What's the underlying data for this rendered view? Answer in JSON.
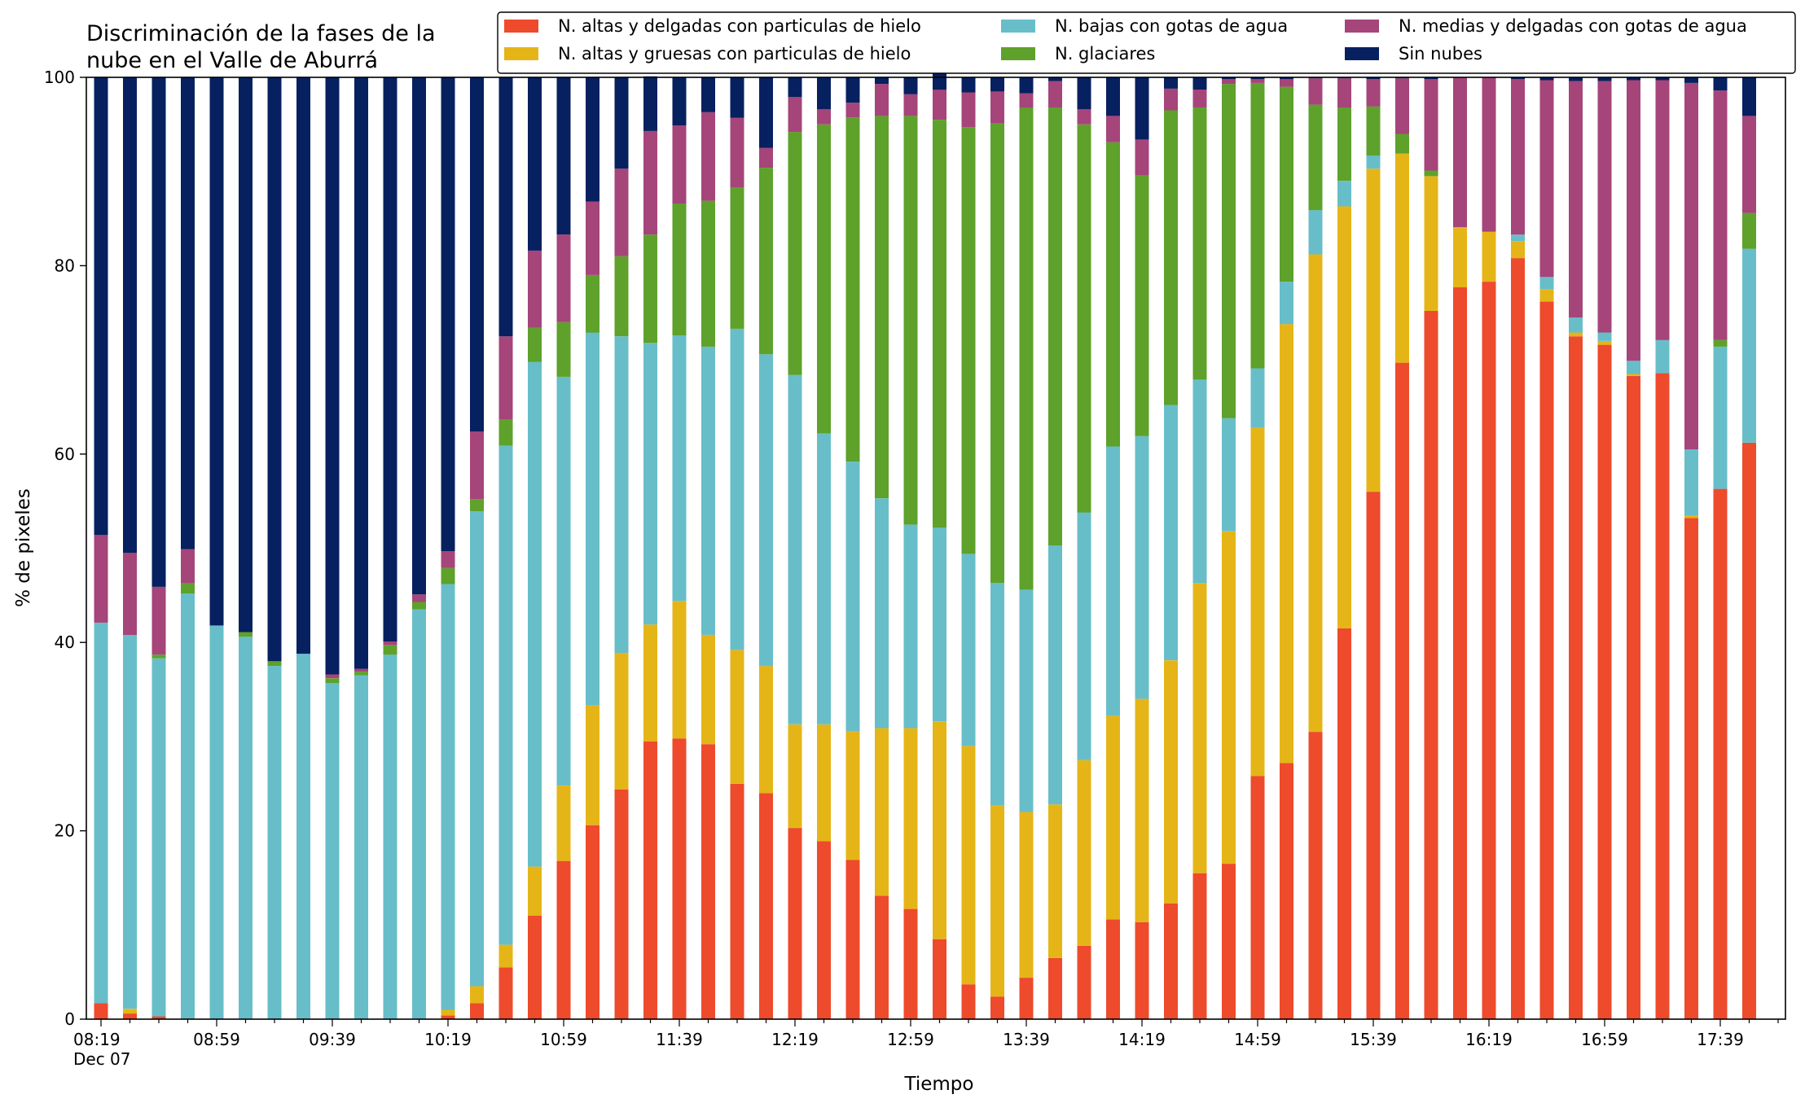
{
  "chart_data": {
    "type": "bar",
    "stacked": true,
    "title": "Discriminación de la fases de la\nnube en el Valle de Aburrá",
    "xlabel": "Tiempo",
    "ylabel": "% de pixeles",
    "ylim": [
      0,
      100
    ],
    "yticks": [
      0,
      20,
      40,
      60,
      80,
      100
    ],
    "xtick_labels": [
      "08:19",
      "08:59",
      "09:39",
      "10:19",
      "10:59",
      "11:39",
      "12:19",
      "12:59",
      "13:39",
      "14:19",
      "14:59",
      "15:39",
      "16:19",
      "16:59",
      "17:39"
    ],
    "xtick_sublabel": "Dec 07",
    "grid": false,
    "legend": "top",
    "categories": [
      "08:19",
      "08:29",
      "08:39",
      "08:49",
      "08:59",
      "09:09",
      "09:19",
      "09:29",
      "09:39",
      "09:49",
      "09:59",
      "10:09",
      "10:19",
      "10:29",
      "10:39",
      "10:49",
      "10:59",
      "11:09",
      "11:19",
      "11:29",
      "11:39",
      "11:49",
      "11:59",
      "12:09",
      "12:19",
      "12:29",
      "12:39",
      "12:49",
      "12:59",
      "13:09",
      "13:19",
      "13:29",
      "13:39",
      "13:49",
      "13:59",
      "14:09",
      "14:19",
      "14:29",
      "14:39",
      "14:49",
      "14:59",
      "15:09",
      "15:19",
      "15:29",
      "15:39",
      "15:49",
      "15:59",
      "16:09",
      "16:19",
      "16:29",
      "16:39",
      "16:49",
      "16:59",
      "17:09",
      "17:19",
      "17:29",
      "17:39",
      "17:49"
    ],
    "series": [
      {
        "name": "N. altas y delgadas con particulas de hielo",
        "color": "#ee4a2c",
        "values": [
          1.7,
          0.6,
          0.3,
          0,
          0,
          0,
          0,
          0,
          0,
          0,
          0,
          0,
          0.4,
          1.7,
          5.5,
          11,
          16.8,
          20.6,
          24.4,
          29.5,
          29.8,
          29.2,
          25,
          24,
          20.3,
          18.9,
          16.9,
          13.1,
          11.7,
          8.5,
          3.7,
          2.4,
          4.4,
          6.5,
          7.8,
          10.6,
          10.3,
          12.3,
          15.5,
          16.5,
          25.8,
          27.2,
          30.5,
          41.5,
          56,
          69.7,
          75.2,
          77.7,
          78.3,
          80.8,
          76.2,
          72.5,
          71.6,
          68.3,
          68.6,
          53.2,
          56.3,
          61.2
        ]
      },
      {
        "name": "N. altas y gruesas con particulas de hielo",
        "color": "#e5b517",
        "values": [
          0,
          0.5,
          0,
          0,
          0,
          0,
          0,
          0,
          0,
          0,
          0,
          0,
          0.6,
          1.8,
          2.4,
          5.2,
          8,
          12.7,
          14.5,
          12.4,
          14.6,
          11.6,
          14.2,
          13.5,
          11,
          12.4,
          13.7,
          17.8,
          19.2,
          23.1,
          25.3,
          20.3,
          17.6,
          16.3,
          19.7,
          21.6,
          23.7,
          25.8,
          30.8,
          35.3,
          37,
          46.6,
          50.7,
          44.8,
          34.3,
          22.2,
          14.3,
          6.4,
          5.3,
          1.8,
          1.3,
          0.4,
          0.4,
          0.2,
          0,
          0.3,
          0,
          0
        ]
      },
      {
        "name": "N. bajas con gotas de agua",
        "color": "#67bec9",
        "values": [
          40.4,
          39.7,
          38,
          45.2,
          41.8,
          40.6,
          37.5,
          38.8,
          35.7,
          36.5,
          38.7,
          43.5,
          45.2,
          50.4,
          53,
          53.6,
          43.4,
          39.6,
          33.6,
          29.9,
          28.2,
          30.6,
          34.1,
          33.1,
          37.1,
          30.9,
          28.6,
          24.4,
          21.6,
          20.6,
          20.4,
          23.6,
          23.6,
          27.5,
          26.3,
          28.6,
          27.9,
          27.1,
          21.6,
          12,
          6.3,
          4.5,
          4.7,
          2.7,
          1.4,
          0,
          0,
          0,
          0,
          0.7,
          1.3,
          1.6,
          0.9,
          1.4,
          3.5,
          7,
          15.1,
          20.6
        ]
      },
      {
        "name": "N. glaciares",
        "color": "#5ea12b",
        "values": [
          0,
          0,
          0.4,
          1.1,
          0,
          0.5,
          0.5,
          0,
          0.5,
          0.4,
          1,
          0.8,
          1.7,
          1.3,
          2.8,
          3.6,
          5.8,
          6.1,
          8.5,
          11.5,
          14,
          15.5,
          15,
          19.8,
          25.8,
          32.8,
          36.5,
          40.6,
          43.4,
          43.3,
          45.3,
          48.8,
          51.2,
          46.5,
          41.2,
          32.3,
          27.7,
          31.3,
          28.9,
          35.5,
          30.3,
          20.7,
          11.2,
          7.8,
          5.2,
          2.1,
          0.6,
          0,
          0,
          0,
          0,
          0,
          0,
          0,
          0,
          0,
          0.7,
          3.8
        ]
      },
      {
        "name": "N. medias y delgadas con gotas de agua",
        "color": "#a5457a",
        "values": [
          9.3,
          8.7,
          7.2,
          3.6,
          0,
          0,
          0,
          0,
          0.4,
          0.3,
          0.4,
          0.8,
          1.8,
          7.2,
          8.8,
          8.2,
          9.3,
          7.8,
          9.3,
          11,
          8.3,
          9.4,
          7.4,
          2.1,
          3.7,
          1.6,
          1.6,
          3.4,
          2.3,
          3.2,
          3.7,
          3.4,
          1.5,
          2.8,
          1.6,
          2.8,
          3.8,
          2.3,
          1.9,
          0.5,
          0.4,
          0.8,
          2.8,
          3.1,
          2.9,
          5.9,
          9.7,
          15.9,
          16.4,
          16.5,
          20.9,
          25.1,
          26.7,
          29.8,
          27.6,
          38.9,
          26.5,
          10.3
        ]
      },
      {
        "name": "Sin nubes",
        "color": "#07205f",
        "values": [
          48.6,
          50.5,
          54.1,
          50.1,
          58.2,
          58.9,
          62,
          61.2,
          63.4,
          62.8,
          59.9,
          54.9,
          50.3,
          37.6,
          27.5,
          18.4,
          16.7,
          13.2,
          9.7,
          5.8,
          5.1,
          3.7,
          4.3,
          7.5,
          2.1,
          3.4,
          2.7,
          0.7,
          1.8,
          1.7,
          1.6,
          1.5,
          1.7,
          0.4,
          3.4,
          4.1,
          6.6,
          1.2,
          1.3,
          0.2,
          0.2,
          0.2,
          0.1,
          0.1,
          0.2,
          0.1,
          0.2,
          0,
          0,
          0.2,
          0.3,
          0.4,
          0.4,
          0.3,
          0.3,
          0.6,
          1.4,
          4.1
        ]
      }
    ]
  }
}
